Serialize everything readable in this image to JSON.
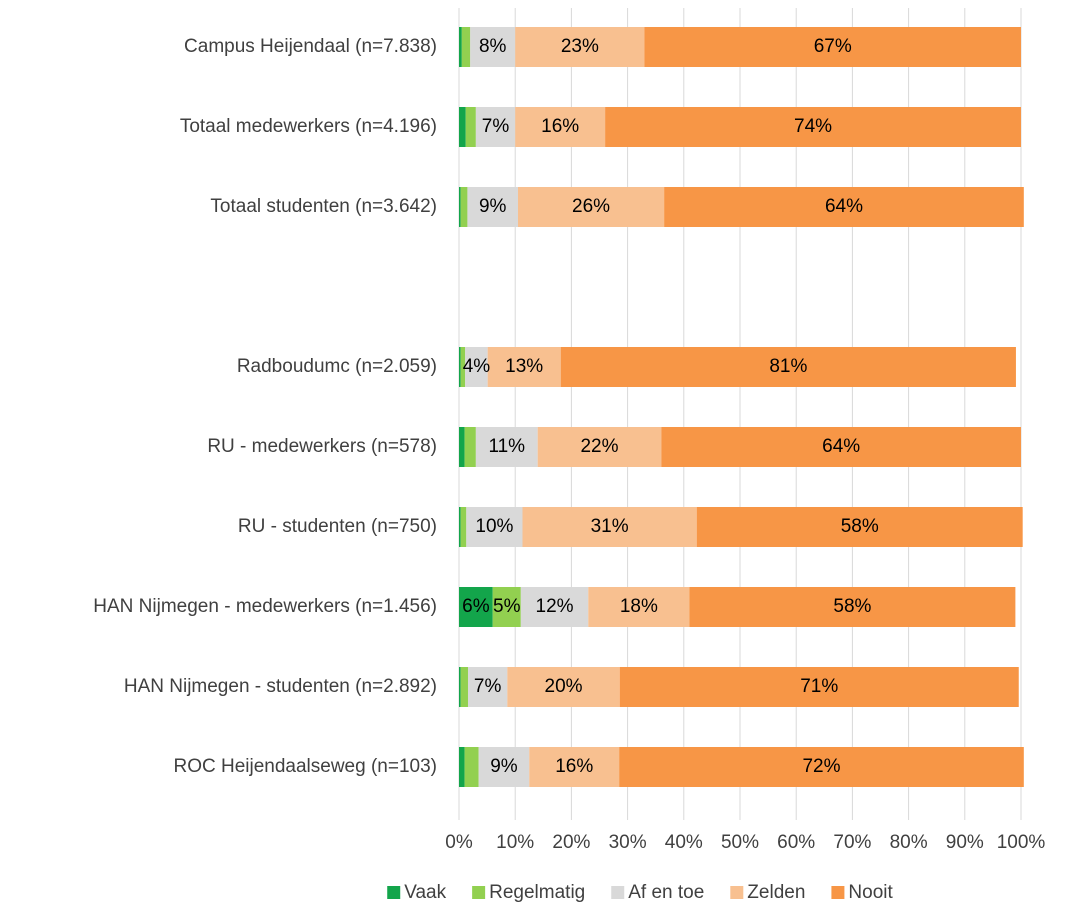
{
  "chart_data": {
    "type": "stacked-bar-horizontal",
    "categories": [
      "Campus Heijendaal (n=7.838)",
      "Totaal medewerkers (n=4.196)",
      "Totaal studenten (n=3.642)",
      null,
      "Radboudumc (n=2.059)",
      "RU - medewerkers (n=578)",
      "RU - studenten (n=750)",
      "HAN Nijmegen - medewerkers (n=1.456)",
      "HAN Nijmegen - studenten (n=2.892)",
      "ROC Heijendaalseweg (n=103)"
    ],
    "series": [
      {
        "name": "Vaak",
        "color": "#13a54b",
        "values": [
          0.5,
          1.2,
          0.3,
          null,
          0.3,
          1,
          0.3,
          6,
          0.3,
          1
        ],
        "value_labels": [
          null,
          null,
          null,
          null,
          null,
          null,
          null,
          "6%",
          null,
          null
        ]
      },
      {
        "name": "Regelmatig",
        "color": "#92d050",
        "values": [
          1.5,
          1.8,
          1.2,
          null,
          0.8,
          2,
          1,
          5,
          1.3,
          2.5
        ],
        "value_labels": [
          null,
          null,
          null,
          null,
          null,
          null,
          null,
          "5%",
          null,
          null
        ]
      },
      {
        "name": "Af en toe",
        "color": "#d9d9d9",
        "values": [
          8,
          7,
          9,
          null,
          4,
          11,
          10,
          12,
          7,
          9
        ],
        "value_labels": [
          "8%",
          "7%",
          "9%",
          null,
          "4%",
          "11%",
          "10%",
          "12%",
          "7%",
          "9%"
        ]
      },
      {
        "name": "Zelden",
        "color": "#f8c090",
        "values": [
          23,
          16,
          26,
          null,
          13,
          22,
          31,
          18,
          20,
          16
        ],
        "value_labels": [
          "23%",
          "16%",
          "26%",
          null,
          "13%",
          "22%",
          "31%",
          "18%",
          "20%",
          "16%"
        ]
      },
      {
        "name": "Nooit",
        "color": "#f79646",
        "values": [
          67,
          74,
          64,
          null,
          81,
          64,
          58,
          58,
          71,
          72
        ],
        "value_labels": [
          "67%",
          "74%",
          "64%",
          null,
          "81%",
          "64%",
          "58%",
          "58%",
          "71%",
          "72%"
        ]
      }
    ],
    "xlim": [
      0,
      100
    ],
    "xticks": [
      {
        "value": 0,
        "label": "0%"
      },
      {
        "value": 10,
        "label": "10%"
      },
      {
        "value": 20,
        "label": "20%"
      },
      {
        "value": 30,
        "label": "30%"
      },
      {
        "value": 40,
        "label": "40%"
      },
      {
        "value": 50,
        "label": "50%"
      },
      {
        "value": 60,
        "label": "60%"
      },
      {
        "value": 70,
        "label": "70%"
      },
      {
        "value": 80,
        "label": "80%"
      },
      {
        "value": 90,
        "label": "90%"
      },
      {
        "value": 100,
        "label": "100%"
      }
    ],
    "grid": true,
    "legend": "bottom"
  }
}
